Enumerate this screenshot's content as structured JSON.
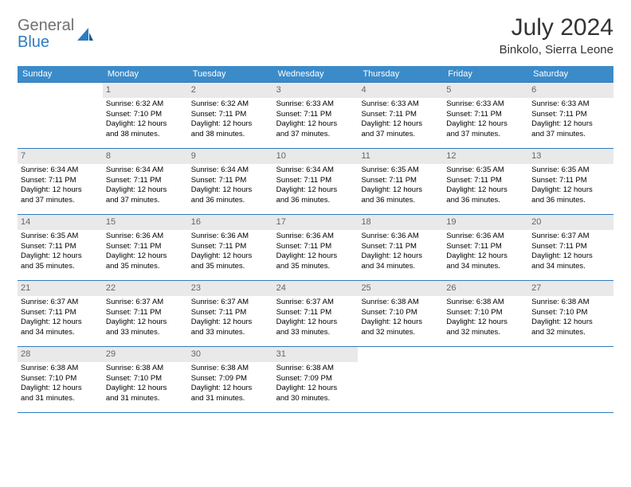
{
  "brand": {
    "general": "General",
    "blue": "Blue"
  },
  "title": "July 2024",
  "location": "Binkolo, Sierra Leone",
  "colors": {
    "header_bg": "#3b8bc9",
    "header_text": "#ffffff",
    "daynum_bg": "#e9e9e9",
    "daynum_text": "#666666",
    "rule": "#2f7bbf",
    "logo_gray": "#707070",
    "logo_blue": "#2f7bbf"
  },
  "weekdays": [
    "Sunday",
    "Monday",
    "Tuesday",
    "Wednesday",
    "Thursday",
    "Friday",
    "Saturday"
  ],
  "weeks": [
    [
      {
        "n": "",
        "lines": []
      },
      {
        "n": "1",
        "lines": [
          "Sunrise: 6:32 AM",
          "Sunset: 7:10 PM",
          "Daylight: 12 hours",
          "and 38 minutes."
        ]
      },
      {
        "n": "2",
        "lines": [
          "Sunrise: 6:32 AM",
          "Sunset: 7:11 PM",
          "Daylight: 12 hours",
          "and 38 minutes."
        ]
      },
      {
        "n": "3",
        "lines": [
          "Sunrise: 6:33 AM",
          "Sunset: 7:11 PM",
          "Daylight: 12 hours",
          "and 37 minutes."
        ]
      },
      {
        "n": "4",
        "lines": [
          "Sunrise: 6:33 AM",
          "Sunset: 7:11 PM",
          "Daylight: 12 hours",
          "and 37 minutes."
        ]
      },
      {
        "n": "5",
        "lines": [
          "Sunrise: 6:33 AM",
          "Sunset: 7:11 PM",
          "Daylight: 12 hours",
          "and 37 minutes."
        ]
      },
      {
        "n": "6",
        "lines": [
          "Sunrise: 6:33 AM",
          "Sunset: 7:11 PM",
          "Daylight: 12 hours",
          "and 37 minutes."
        ]
      }
    ],
    [
      {
        "n": "7",
        "lines": [
          "Sunrise: 6:34 AM",
          "Sunset: 7:11 PM",
          "Daylight: 12 hours",
          "and 37 minutes."
        ]
      },
      {
        "n": "8",
        "lines": [
          "Sunrise: 6:34 AM",
          "Sunset: 7:11 PM",
          "Daylight: 12 hours",
          "and 37 minutes."
        ]
      },
      {
        "n": "9",
        "lines": [
          "Sunrise: 6:34 AM",
          "Sunset: 7:11 PM",
          "Daylight: 12 hours",
          "and 36 minutes."
        ]
      },
      {
        "n": "10",
        "lines": [
          "Sunrise: 6:34 AM",
          "Sunset: 7:11 PM",
          "Daylight: 12 hours",
          "and 36 minutes."
        ]
      },
      {
        "n": "11",
        "lines": [
          "Sunrise: 6:35 AM",
          "Sunset: 7:11 PM",
          "Daylight: 12 hours",
          "and 36 minutes."
        ]
      },
      {
        "n": "12",
        "lines": [
          "Sunrise: 6:35 AM",
          "Sunset: 7:11 PM",
          "Daylight: 12 hours",
          "and 36 minutes."
        ]
      },
      {
        "n": "13",
        "lines": [
          "Sunrise: 6:35 AM",
          "Sunset: 7:11 PM",
          "Daylight: 12 hours",
          "and 36 minutes."
        ]
      }
    ],
    [
      {
        "n": "14",
        "lines": [
          "Sunrise: 6:35 AM",
          "Sunset: 7:11 PM",
          "Daylight: 12 hours",
          "and 35 minutes."
        ]
      },
      {
        "n": "15",
        "lines": [
          "Sunrise: 6:36 AM",
          "Sunset: 7:11 PM",
          "Daylight: 12 hours",
          "and 35 minutes."
        ]
      },
      {
        "n": "16",
        "lines": [
          "Sunrise: 6:36 AM",
          "Sunset: 7:11 PM",
          "Daylight: 12 hours",
          "and 35 minutes."
        ]
      },
      {
        "n": "17",
        "lines": [
          "Sunrise: 6:36 AM",
          "Sunset: 7:11 PM",
          "Daylight: 12 hours",
          "and 35 minutes."
        ]
      },
      {
        "n": "18",
        "lines": [
          "Sunrise: 6:36 AM",
          "Sunset: 7:11 PM",
          "Daylight: 12 hours",
          "and 34 minutes."
        ]
      },
      {
        "n": "19",
        "lines": [
          "Sunrise: 6:36 AM",
          "Sunset: 7:11 PM",
          "Daylight: 12 hours",
          "and 34 minutes."
        ]
      },
      {
        "n": "20",
        "lines": [
          "Sunrise: 6:37 AM",
          "Sunset: 7:11 PM",
          "Daylight: 12 hours",
          "and 34 minutes."
        ]
      }
    ],
    [
      {
        "n": "21",
        "lines": [
          "Sunrise: 6:37 AM",
          "Sunset: 7:11 PM",
          "Daylight: 12 hours",
          "and 34 minutes."
        ]
      },
      {
        "n": "22",
        "lines": [
          "Sunrise: 6:37 AM",
          "Sunset: 7:11 PM",
          "Daylight: 12 hours",
          "and 33 minutes."
        ]
      },
      {
        "n": "23",
        "lines": [
          "Sunrise: 6:37 AM",
          "Sunset: 7:11 PM",
          "Daylight: 12 hours",
          "and 33 minutes."
        ]
      },
      {
        "n": "24",
        "lines": [
          "Sunrise: 6:37 AM",
          "Sunset: 7:11 PM",
          "Daylight: 12 hours",
          "and 33 minutes."
        ]
      },
      {
        "n": "25",
        "lines": [
          "Sunrise: 6:38 AM",
          "Sunset: 7:10 PM",
          "Daylight: 12 hours",
          "and 32 minutes."
        ]
      },
      {
        "n": "26",
        "lines": [
          "Sunrise: 6:38 AM",
          "Sunset: 7:10 PM",
          "Daylight: 12 hours",
          "and 32 minutes."
        ]
      },
      {
        "n": "27",
        "lines": [
          "Sunrise: 6:38 AM",
          "Sunset: 7:10 PM",
          "Daylight: 12 hours",
          "and 32 minutes."
        ]
      }
    ],
    [
      {
        "n": "28",
        "lines": [
          "Sunrise: 6:38 AM",
          "Sunset: 7:10 PM",
          "Daylight: 12 hours",
          "and 31 minutes."
        ]
      },
      {
        "n": "29",
        "lines": [
          "Sunrise: 6:38 AM",
          "Sunset: 7:10 PM",
          "Daylight: 12 hours",
          "and 31 minutes."
        ]
      },
      {
        "n": "30",
        "lines": [
          "Sunrise: 6:38 AM",
          "Sunset: 7:09 PM",
          "Daylight: 12 hours",
          "and 31 minutes."
        ]
      },
      {
        "n": "31",
        "lines": [
          "Sunrise: 6:38 AM",
          "Sunset: 7:09 PM",
          "Daylight: 12 hours",
          "and 30 minutes."
        ]
      },
      {
        "n": "",
        "lines": []
      },
      {
        "n": "",
        "lines": []
      },
      {
        "n": "",
        "lines": []
      }
    ]
  ]
}
